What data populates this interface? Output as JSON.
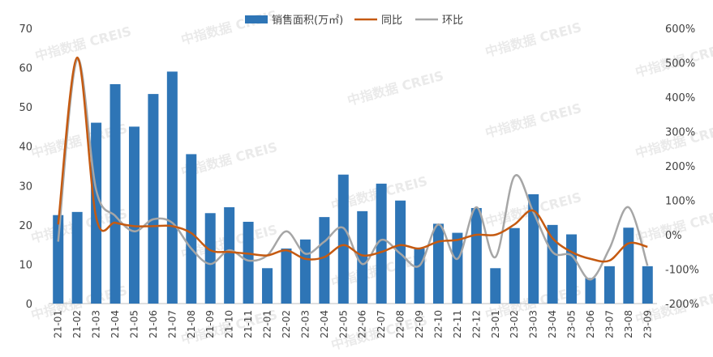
{
  "chart_data": {
    "type": "bar",
    "categories": [
      "21-01",
      "21-02",
      "21-03",
      "21-04",
      "21-05",
      "21-06",
      "21-07",
      "21-08",
      "21-09",
      "21-10",
      "21-11",
      "22-01",
      "22-02",
      "22-03",
      "22-04",
      "22-05",
      "22-06",
      "22-07",
      "22-08",
      "22-09",
      "22-10",
      "22-11",
      "22-12",
      "23-01",
      "23-02",
      "23-03",
      "23-04",
      "23-05",
      "23-06",
      "23-07",
      "23-08",
      "23-09"
    ],
    "series": [
      {
        "name": "销售面积(万㎡)",
        "type": "bar",
        "axis": "left",
        "color": "#2e75b6",
        "values": [
          22.5,
          23.3,
          46,
          55.8,
          45,
          53.3,
          59,
          38,
          23,
          24.5,
          20.8,
          9,
          14,
          16.3,
          22,
          32.8,
          23.5,
          30.5,
          26.2,
          14,
          20.3,
          18,
          24.3,
          9,
          19.2,
          27.8,
          20,
          17.6,
          6.5,
          9.5,
          19.3,
          9.5
        ]
      },
      {
        "name": "同比",
        "type": "line",
        "axis": "right",
        "color": "#c55a11",
        "values": [
          30,
          515,
          50,
          35,
          25,
          25,
          25,
          5,
          -45,
          -50,
          -55,
          -60,
          -45,
          -70,
          -65,
          -30,
          -60,
          -50,
          -30,
          -40,
          -20,
          -15,
          0,
          0,
          30,
          70,
          -10,
          -50,
          -70,
          -75,
          -25,
          -35
        ]
      },
      {
        "name": "环比",
        "type": "line",
        "axis": "right",
        "color": "#a6a6a6",
        "values": [
          -20,
          510,
          130,
          55,
          10,
          45,
          35,
          -40,
          -85,
          -45,
          -75,
          -60,
          10,
          -55,
          -20,
          20,
          -85,
          -15,
          -55,
          -90,
          30,
          -70,
          80,
          -65,
          170,
          65,
          -50,
          -60,
          -130,
          -40,
          80,
          -90
        ]
      }
    ],
    "y_left": {
      "ticks": [
        "0",
        "10",
        "20",
        "30",
        "40",
        "50",
        "60",
        "70"
      ],
      "ylim": [
        0,
        70
      ]
    },
    "y_right": {
      "ticks": [
        "-200%",
        "-100%",
        "0%",
        "100%",
        "200%",
        "300%",
        "400%",
        "500%",
        "600%"
      ],
      "ylim": [
        -200,
        600
      ]
    },
    "legend": {
      "position": "top",
      "items": [
        "销售面积(万㎡)",
        "同比",
        "环比"
      ]
    },
    "grid": false
  },
  "watermark": "中指数据 CREIS"
}
